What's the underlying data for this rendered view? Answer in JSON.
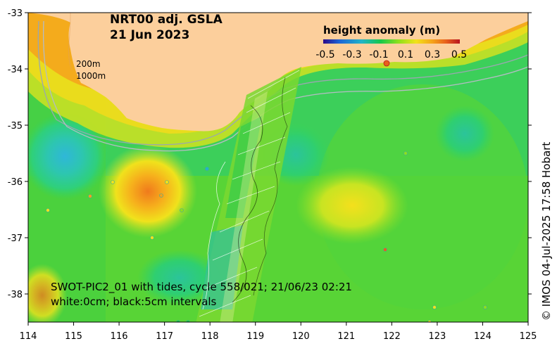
{
  "map": {
    "title_line1": "NRT00 adj. GSLA",
    "title_line2": "21 Jun 2023",
    "colorbar": {
      "title": "height anomaly (m)",
      "ticks": [
        "-0.5",
        "-0.3",
        "-0.1",
        "0.1",
        "0.3",
        "0.5"
      ],
      "colors": [
        "#2a0a8a",
        "#1e66d6",
        "#22b4c8",
        "#18c84a",
        "#8ee01c",
        "#f2e21a",
        "#f5a21a",
        "#e8601c",
        "#b8141e"
      ]
    },
    "isobaths": [
      "200m",
      "1000m"
    ],
    "swot_line1": "SWOT-PIC2_01 with tides, cycle 558/021; 21/06/23 02:21",
    "swot_line2": "white:0cm; black:5cm intervals",
    "credit": "© IMOS 04-Jul-2025 17:58 Hobart",
    "x_ticks": [
      "114",
      "115",
      "116",
      "117",
      "118",
      "119",
      "120",
      "121",
      "122",
      "123",
      "124",
      "125"
    ],
    "y_ticks": [
      "-33",
      "-34",
      "-35",
      "-36",
      "-37",
      "-38"
    ],
    "land_color": "#fccf9c"
  }
}
